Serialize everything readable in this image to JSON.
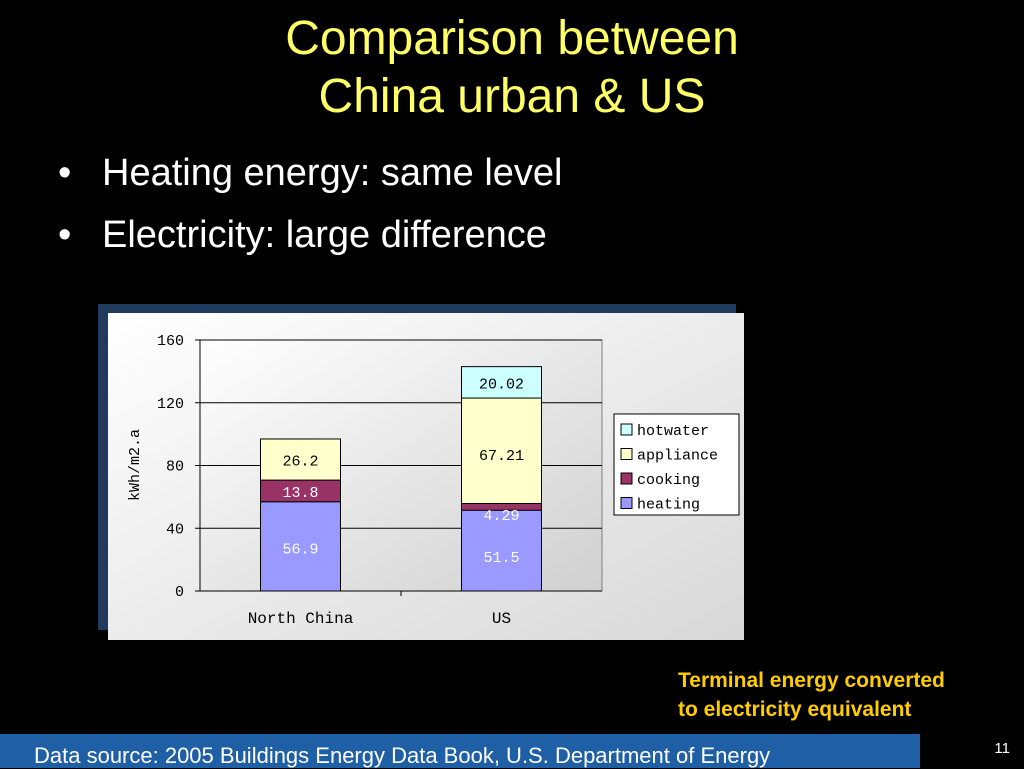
{
  "slide": {
    "title_line1": "Comparison between",
    "title_line2": "China urban & US",
    "bullets": [
      "Heating energy: same level",
      "Electricity: large difference"
    ],
    "note_line1": "Terminal energy converted",
    "note_line2": "to electricity equivalent",
    "footer": "Data source: 2005 Buildings Energy Data Book, U.S. Department of Energy",
    "page_number": "11",
    "bullet_char": "•"
  },
  "colors": {
    "background": "#000000",
    "title": "#ffff66",
    "note": "#ffcc00",
    "footer_bar": "#1f5fa6"
  },
  "chart_data": {
    "type": "bar",
    "stacked": true,
    "categories": [
      "North China",
      "US"
    ],
    "ylabel": "kWh/m2.a",
    "ylim": [
      0,
      160
    ],
    "yticks": [
      0,
      40,
      80,
      120,
      160
    ],
    "grid": true,
    "legend": "right",
    "series": [
      {
        "name": "heating",
        "values": [
          56.9,
          51.5
        ],
        "labels": [
          "56.9",
          "51.5"
        ],
        "color": "#9999ff"
      },
      {
        "name": "cooking",
        "values": [
          13.8,
          4.29
        ],
        "labels": [
          "13.8",
          "4.29"
        ],
        "color": "#993366"
      },
      {
        "name": "appliance",
        "values": [
          26.2,
          67.21
        ],
        "labels": [
          "26.2",
          "67.21"
        ],
        "color": "#ffffcc"
      },
      {
        "name": "hotwater",
        "values": [
          0,
          20.02
        ],
        "labels": [
          "",
          "20.02"
        ],
        "color": "#ccffff"
      }
    ],
    "legend_order": [
      "hotwater",
      "appliance",
      "cooking",
      "heating"
    ]
  }
}
